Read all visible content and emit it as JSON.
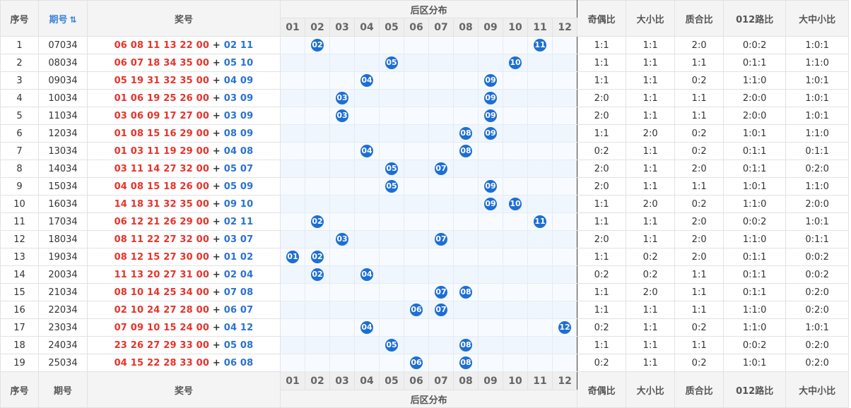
{
  "header": {
    "seq": "序号",
    "issue": "期号",
    "sort_icon": "sort-icon",
    "prize": "奖号",
    "dist_title": "后区分布",
    "ratios": [
      "奇偶比",
      "大小比",
      "质合比",
      "012路比",
      "大中小比"
    ],
    "cols": [
      "01",
      "02",
      "03",
      "04",
      "05",
      "06",
      "07",
      "08",
      "09",
      "10",
      "11",
      "12"
    ]
  },
  "rows": [
    {
      "idx": "1",
      "issue": "07034",
      "front": "06 08 11 13 22 00",
      "back": "02 11",
      "balls": [
        2,
        11
      ],
      "r": [
        "1:1",
        "1:1",
        "2:0",
        "0:0:2",
        "1:0:1"
      ]
    },
    {
      "idx": "2",
      "issue": "08034",
      "front": "06 07 18 34 35 00",
      "back": "05 10",
      "balls": [
        5,
        10
      ],
      "r": [
        "1:1",
        "1:1",
        "1:1",
        "0:1:1",
        "1:1:0"
      ]
    },
    {
      "idx": "3",
      "issue": "09034",
      "front": "05 19 31 32 35 00",
      "back": "04 09",
      "balls": [
        4,
        9
      ],
      "r": [
        "1:1",
        "1:1",
        "0:2",
        "1:1:0",
        "1:0:1"
      ]
    },
    {
      "idx": "4",
      "issue": "10034",
      "front": "01 06 19 25 26 00",
      "back": "03 09",
      "balls": [
        3,
        9
      ],
      "r": [
        "2:0",
        "1:1",
        "1:1",
        "2:0:0",
        "1:0:1"
      ]
    },
    {
      "idx": "5",
      "issue": "11034",
      "front": "03 06 09 17 27 00",
      "back": "03 09",
      "balls": [
        3,
        9
      ],
      "r": [
        "2:0",
        "1:1",
        "1:1",
        "2:0:0",
        "1:0:1"
      ]
    },
    {
      "idx": "6",
      "issue": "12034",
      "front": "01 08 15 16 29 00",
      "back": "08 09",
      "balls": [
        8,
        9
      ],
      "r": [
        "1:1",
        "2:0",
        "0:2",
        "1:0:1",
        "1:1:0"
      ]
    },
    {
      "idx": "7",
      "issue": "13034",
      "front": "01 03 11 19 29 00",
      "back": "04 08",
      "balls": [
        4,
        8
      ],
      "r": [
        "0:2",
        "1:1",
        "0:2",
        "0:1:1",
        "0:1:1"
      ]
    },
    {
      "idx": "8",
      "issue": "14034",
      "front": "03 11 14 27 32 00",
      "back": "05 07",
      "balls": [
        5,
        7
      ],
      "r": [
        "2:0",
        "1:1",
        "2:0",
        "0:1:1",
        "0:2:0"
      ]
    },
    {
      "idx": "9",
      "issue": "15034",
      "front": "04 08 15 18 26 00",
      "back": "05 09",
      "balls": [
        5,
        9
      ],
      "r": [
        "2:0",
        "1:1",
        "1:1",
        "1:0:1",
        "1:1:0"
      ]
    },
    {
      "idx": "10",
      "issue": "16034",
      "front": "14 18 31 32 35 00",
      "back": "09 10",
      "balls": [
        9,
        10
      ],
      "r": [
        "1:1",
        "2:0",
        "0:2",
        "1:1:0",
        "2:0:0"
      ]
    },
    {
      "idx": "11",
      "issue": "17034",
      "front": "06 12 21 26 29 00",
      "back": "02 11",
      "balls": [
        2,
        11
      ],
      "r": [
        "1:1",
        "1:1",
        "2:0",
        "0:0:2",
        "1:0:1"
      ]
    },
    {
      "idx": "12",
      "issue": "18034",
      "front": "08 11 22 27 32 00",
      "back": "03 07",
      "balls": [
        3,
        7
      ],
      "r": [
        "2:0",
        "1:1",
        "2:0",
        "1:1:0",
        "0:1:1"
      ]
    },
    {
      "idx": "13",
      "issue": "19034",
      "front": "08 12 15 27 30 00",
      "back": "01 02",
      "balls": [
        1,
        2
      ],
      "r": [
        "1:1",
        "0:2",
        "2:0",
        "0:1:1",
        "0:0:2"
      ]
    },
    {
      "idx": "14",
      "issue": "20034",
      "front": "11 13 20 27 31 00",
      "back": "02 04",
      "balls": [
        2,
        4
      ],
      "r": [
        "0:2",
        "0:2",
        "1:1",
        "0:1:1",
        "0:0:2"
      ]
    },
    {
      "idx": "15",
      "issue": "21034",
      "front": "08 10 14 25 34 00",
      "back": "07 08",
      "balls": [
        7,
        8
      ],
      "r": [
        "1:1",
        "2:0",
        "1:1",
        "0:1:1",
        "0:2:0"
      ]
    },
    {
      "idx": "16",
      "issue": "22034",
      "front": "02 10 24 27 28 00",
      "back": "06 07",
      "balls": [
        6,
        7
      ],
      "r": [
        "1:1",
        "1:1",
        "1:1",
        "1:1:0",
        "0:2:0"
      ]
    },
    {
      "idx": "17",
      "issue": "23034",
      "front": "07 09 10 15 24 00",
      "back": "04 12",
      "balls": [
        4,
        12
      ],
      "r": [
        "0:2",
        "1:1",
        "0:2",
        "1:1:0",
        "1:0:1"
      ]
    },
    {
      "idx": "18",
      "issue": "24034",
      "front": "23 26 27 29 33 00",
      "back": "05 08",
      "balls": [
        5,
        8
      ],
      "r": [
        "1:1",
        "1:1",
        "1:1",
        "0:0:2",
        "0:2:0"
      ]
    },
    {
      "idx": "19",
      "issue": "25034",
      "front": "04 15 22 28 33 00",
      "back": "06 08",
      "balls": [
        6,
        8
      ],
      "r": [
        "0:2",
        "1:1",
        "0:2",
        "1:0:1",
        "0:2:0"
      ]
    }
  ],
  "plus_sign": "+",
  "colors": {
    "front": "#e8332a",
    "back": "#2a72d2",
    "ball": "#1d6ed6"
  }
}
